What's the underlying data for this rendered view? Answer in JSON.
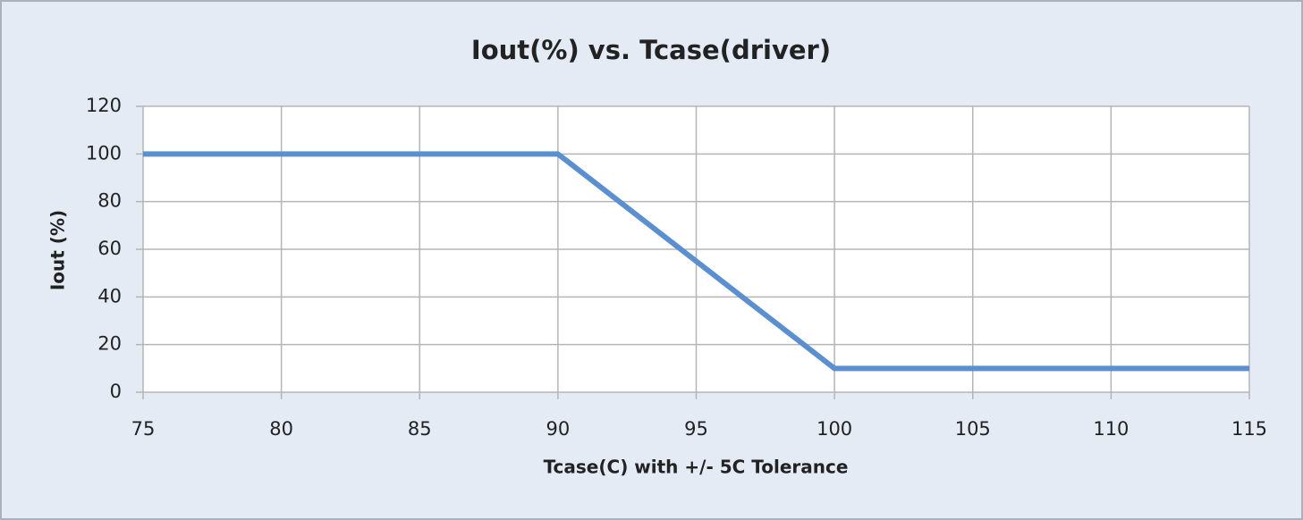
{
  "chart_data": {
    "type": "line",
    "title": "Iout(%) vs. Tcase(driver)",
    "x_label": "Tcase(C) with +/- 5C Tolerance",
    "y_label": "Iout (%)",
    "x": [
      75,
      90,
      100,
      115
    ],
    "values": [
      100,
      100,
      10,
      10
    ],
    "color": "#5b8fd0",
    "xlim": [
      75,
      115
    ],
    "xticks": [
      75,
      80,
      85,
      90,
      95,
      100,
      105,
      110,
      115
    ],
    "ylim": [
      0,
      120
    ],
    "yticks": [
      0,
      20,
      40,
      60,
      80,
      100,
      120
    ],
    "grid": true
  }
}
